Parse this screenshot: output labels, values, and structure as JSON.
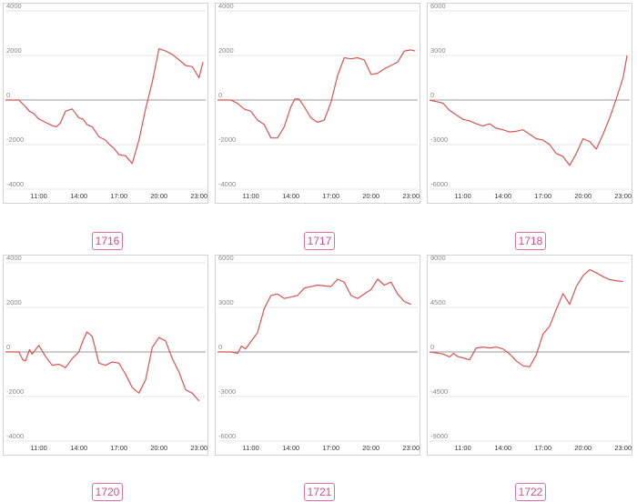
{
  "colors": {
    "line": "#d9534f",
    "grid": "#e6e6e6",
    "zero": "#999999",
    "axis_text": "#888888",
    "tag": "#d94c83"
  },
  "chart_data": [
    {
      "type": "line",
      "label": "1716",
      "x_ticks": [
        "11:00",
        "14:00",
        "17:00",
        "20:00",
        "23:00"
      ],
      "y_ticks": [
        "4000",
        "2000",
        "0",
        "-2000",
        "-4000"
      ],
      "xlim": [
        8.5,
        23.5
      ],
      "ylim": [
        -4000,
        4000
      ],
      "x": [
        8.5,
        9.5,
        10.0,
        10.3,
        10.6,
        11.0,
        11.5,
        12.0,
        12.3,
        12.6,
        13.0,
        13.5,
        14.0,
        14.3,
        14.6,
        15.0,
        15.5,
        16.0,
        16.3,
        16.6,
        17.0,
        17.5,
        18.0,
        18.5,
        19.0,
        19.5,
        20.0,
        20.5,
        21.0,
        21.5,
        22.0,
        22.5,
        23.0,
        23.3
      ],
      "y": [
        0,
        0,
        -300,
        -500,
        -600,
        -850,
        -1000,
        -1150,
        -1200,
        -1050,
        -500,
        -400,
        -800,
        -850,
        -1100,
        -1200,
        -1650,
        -1800,
        -2000,
        -2150,
        -2450,
        -2500,
        -2850,
        -1800,
        -400,
        800,
        2300,
        2200,
        2050,
        1800,
        1550,
        1500,
        1000,
        1700
      ]
    },
    {
      "type": "line",
      "label": "1717",
      "x_ticks": [
        "11:00",
        "14:00",
        "17:00",
        "20:00",
        "23:00"
      ],
      "y_ticks": [
        "4000",
        "2000",
        "0",
        "-2000",
        "-4000"
      ],
      "xlim": [
        8.5,
        23.5
      ],
      "ylim": [
        -4000,
        4000
      ],
      "x": [
        8.5,
        9.5,
        10.0,
        10.5,
        11.0,
        11.5,
        12.0,
        12.5,
        13.0,
        13.5,
        14.0,
        14.3,
        14.6,
        15.0,
        15.5,
        16.0,
        16.5,
        17.0,
        17.5,
        18.0,
        18.5,
        19.0,
        19.5,
        20.0,
        20.5,
        21.0,
        21.5,
        22.0,
        22.5,
        23.0,
        23.3
      ],
      "y": [
        0,
        0,
        -150,
        -400,
        -500,
        -900,
        -1100,
        -1700,
        -1700,
        -1200,
        -300,
        50,
        50,
        -300,
        -800,
        -1000,
        -900,
        -100,
        1100,
        1900,
        1850,
        1900,
        1800,
        1150,
        1200,
        1400,
        1550,
        1700,
        2200,
        2250,
        2200
      ]
    },
    {
      "type": "line",
      "label": "1718",
      "x_ticks": [
        "11:00",
        "14:00",
        "17:00",
        "20:00",
        "23:00"
      ],
      "y_ticks": [
        "6000",
        "3000",
        "0",
        "-3000",
        "-6000"
      ],
      "xlim": [
        8.5,
        23.5
      ],
      "ylim": [
        -6000,
        6000
      ],
      "x": [
        8.5,
        9.5,
        10.0,
        10.5,
        11.0,
        11.5,
        12.0,
        12.5,
        13.0,
        13.5,
        14.0,
        14.5,
        15.0,
        15.5,
        16.0,
        16.5,
        17.0,
        17.5,
        18.0,
        18.5,
        19.0,
        19.5,
        20.0,
        20.5,
        21.0,
        21.5,
        22.0,
        22.5,
        23.0,
        23.3
      ],
      "y": [
        0,
        -200,
        -700,
        -1000,
        -1300,
        -1400,
        -1600,
        -1750,
        -1600,
        -1900,
        -2000,
        -2150,
        -2100,
        -2000,
        -2300,
        -2600,
        -2700,
        -3000,
        -3600,
        -3800,
        -4400,
        -3600,
        -2600,
        -2800,
        -3300,
        -2300,
        -1200,
        100,
        1500,
        3000
      ]
    },
    {
      "type": "line",
      "label": "1720",
      "x_ticks": [
        "11:00",
        "14:00",
        "17:00",
        "20:00",
        "23:00"
      ],
      "y_ticks": [
        "4000",
        "2000",
        "0",
        "-2000",
        "-4000"
      ],
      "xlim": [
        8.5,
        23.5
      ],
      "ylim": [
        -4000,
        4000
      ],
      "x": [
        8.5,
        9.5,
        9.8,
        10.0,
        10.3,
        10.5,
        11.0,
        11.5,
        12.0,
        12.5,
        13.0,
        13.5,
        14.0,
        14.3,
        14.6,
        15.0,
        15.5,
        16.0,
        16.5,
        17.0,
        17.5,
        18.0,
        18.5,
        19.0,
        19.5,
        20.0,
        20.5,
        21.0,
        21.5,
        22.0,
        22.5,
        23.0
      ],
      "y": [
        0,
        0,
        -350,
        -400,
        100,
        -100,
        300,
        -200,
        -600,
        -550,
        -700,
        -300,
        0,
        500,
        900,
        700,
        -500,
        -600,
        -450,
        -500,
        -1000,
        -1600,
        -1850,
        -1250,
        200,
        650,
        500,
        -300,
        -900,
        -1700,
        -1850,
        -2200
      ]
    },
    {
      "type": "line",
      "label": "1721",
      "x_ticks": [
        "11:00",
        "14:00",
        "17:00",
        "20:00",
        "23:00"
      ],
      "y_ticks": [
        "6000",
        "3000",
        "0",
        "-3000",
        "-6000"
      ],
      "xlim": [
        8.5,
        23.5
      ],
      "ylim": [
        -6000,
        6000
      ],
      "x": [
        8.5,
        9.5,
        10.0,
        10.3,
        10.6,
        11.0,
        11.5,
        12.0,
        12.5,
        13.0,
        13.5,
        14.0,
        14.5,
        15.0,
        16.0,
        17.0,
        17.5,
        18.0,
        18.5,
        19.0,
        19.5,
        20.0,
        20.5,
        21.0,
        21.5,
        22.0,
        22.5,
        23.0
      ],
      "y": [
        0,
        0,
        -100,
        400,
        200,
        700,
        1300,
        2900,
        3800,
        3900,
        3600,
        3700,
        3800,
        4300,
        4500,
        4400,
        4900,
        4700,
        3800,
        3600,
        3900,
        4200,
        4900,
        4500,
        4700,
        3900,
        3400,
        3200
      ]
    },
    {
      "type": "line",
      "label": "1722",
      "x_ticks": [
        "11:00",
        "14:00",
        "17:00",
        "20:00",
        "23:00"
      ],
      "y_ticks": [
        "9000",
        "4500",
        "0",
        "-4500",
        "-9000"
      ],
      "xlim": [
        8.5,
        23.5
      ],
      "ylim": [
        -9000,
        9000
      ],
      "x": [
        8.5,
        9.5,
        10.0,
        10.3,
        10.6,
        11.0,
        11.5,
        12.0,
        12.5,
        13.0,
        13.5,
        14.0,
        14.5,
        15.0,
        15.5,
        16.0,
        16.5,
        17.0,
        17.5,
        18.0,
        18.5,
        19.0,
        19.5,
        20.0,
        20.5,
        21.0,
        21.5,
        22.0,
        22.5,
        23.0
      ],
      "y": [
        0,
        -200,
        -500,
        -150,
        -450,
        -600,
        -800,
        400,
        500,
        400,
        500,
        300,
        -200,
        -900,
        -1400,
        -1500,
        -300,
        1800,
        2600,
        4300,
        5900,
        4800,
        6600,
        7700,
        8300,
        8000,
        7600,
        7300,
        7200,
        7100
      ]
    }
  ]
}
